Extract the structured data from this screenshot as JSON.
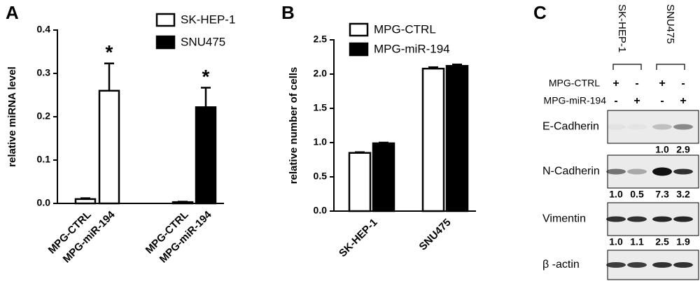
{
  "chart_data": [
    {
      "type": "bar",
      "panel": "A",
      "ylabel": "relative miRNA level",
      "categories": [
        "MPG-CTRL",
        "MPG-miR-194",
        "MPG-CTRL",
        "MPG-miR-194"
      ],
      "series": [
        {
          "name": "SK-HEP-1",
          "color": "#ffffff",
          "values": [
            0.01,
            0.26,
            null,
            null
          ],
          "errors": [
            0.002,
            0.063,
            null,
            null
          ]
        },
        {
          "name": "SNU475",
          "color": "#000000",
          "values": [
            null,
            null,
            0.003,
            0.222
          ],
          "errors": [
            null,
            null,
            0.001,
            0.045
          ]
        }
      ],
      "annotations": [
        "*",
        "*"
      ],
      "ylim": [
        0,
        0.4
      ],
      "yticks": [
        {
          "value": 0,
          "label": "0.0"
        },
        0.1,
        0.2,
        0.3,
        0.4
      ],
      "legend": "top-right"
    },
    {
      "type": "bar",
      "panel": "B",
      "ylabel": "relative number of cells",
      "categories": [
        "SK-HEP-1",
        "SNU475"
      ],
      "series": [
        {
          "name": "MPG-CTRL",
          "color": "#ffffff",
          "values": [
            0.85,
            2.08
          ],
          "errors": [
            0.01,
            0.02
          ]
        },
        {
          "name": "MPG-miR-194",
          "color": "#000000",
          "values": [
            0.99,
            2.12
          ],
          "errors": [
            0.01,
            0.02
          ]
        }
      ],
      "ylim": [
        0,
        2.5
      ],
      "yticks": [
        {
          "value": 0,
          "label": "0.0"
        },
        0.5,
        {
          "value": 1,
          "label": "1.0"
        },
        1.5,
        {
          "value": 2,
          "label": "2.0"
        },
        2.5
      ],
      "legend": "top-left"
    }
  ],
  "blot": {
    "panel": "C",
    "groups": [
      "SK-HEP-1",
      "SNU475"
    ],
    "conditions": [
      {
        "name": "MPG-CTRL",
        "signs": [
          "+",
          "-",
          "+",
          "-"
        ]
      },
      {
        "name": "MPG-miR-194",
        "signs": [
          "-",
          "+",
          "-",
          "+"
        ]
      }
    ],
    "rows": [
      {
        "label": "E-Cadherin",
        "quant": [
          null,
          null,
          "1.0",
          "2.9"
        ]
      },
      {
        "label": "N-Cadherin",
        "quant": [
          "1.0",
          "0.5",
          "7.3",
          "3.2"
        ]
      },
      {
        "label": "Vimentin",
        "quant": [
          "1.0",
          "1.1",
          "2.5",
          "1.9"
        ]
      },
      {
        "label": "β -actin",
        "quant": null
      }
    ]
  }
}
